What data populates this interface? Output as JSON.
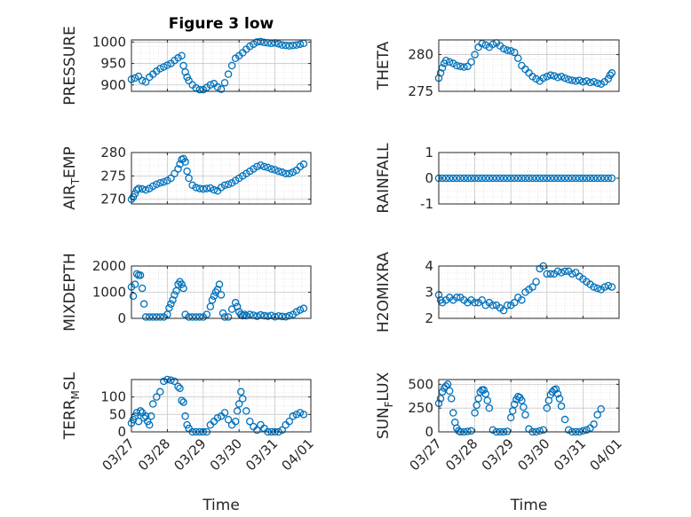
{
  "figure_title": "Figure 3 low",
  "marker_color": "#0072bd",
  "chart_data": [
    {
      "type": "scatter",
      "name": "pressure",
      "ylabel": "PRESSURE",
      "ylim": [
        885,
        1005
      ],
      "yticks": [
        900,
        950,
        1000
      ],
      "ytick_labels": [
        "900",
        "950",
        "1000"
      ],
      "xlim": [
        0,
        5
      ],
      "x": [
        0.0,
        0.1,
        0.2,
        0.3,
        0.4,
        0.5,
        0.6,
        0.7,
        0.8,
        0.9,
        1.0,
        1.1,
        1.2,
        1.3,
        1.4,
        1.45,
        1.5,
        1.55,
        1.6,
        1.7,
        1.8,
        1.9,
        2.0,
        2.1,
        2.2,
        2.3,
        2.4,
        2.5,
        2.6,
        2.7,
        2.8,
        2.9,
        3.0,
        3.1,
        3.2,
        3.3,
        3.4,
        3.5,
        3.6,
        3.7,
        3.8,
        3.9,
        4.0,
        4.1,
        4.2,
        4.3,
        4.4,
        4.5,
        4.6,
        4.7,
        4.8
      ],
      "y": [
        913,
        916,
        920,
        910,
        907,
        918,
        925,
        932,
        938,
        942,
        946,
        950,
        957,
        963,
        968,
        945,
        930,
        918,
        910,
        900,
        893,
        889,
        889,
        894,
        900,
        903,
        895,
        890,
        905,
        925,
        945,
        962,
        968,
        975,
        983,
        990,
        995,
        1000,
        1001,
        999,
        998,
        997,
        998,
        996,
        993,
        992,
        991,
        992,
        993,
        995,
        997
      ]
    },
    {
      "type": "scatter",
      "name": "theta",
      "ylabel": "THETA",
      "ylim": [
        275,
        282
      ],
      "yticks": [
        275,
        280
      ],
      "ytick_labels": [
        "275",
        "280"
      ],
      "xlim": [
        0,
        5
      ],
      "x": [
        0.0,
        0.05,
        0.1,
        0.15,
        0.2,
        0.3,
        0.4,
        0.5,
        0.6,
        0.7,
        0.8,
        0.9,
        1.0,
        1.1,
        1.2,
        1.3,
        1.4,
        1.5,
        1.6,
        1.7,
        1.8,
        1.9,
        2.0,
        2.1,
        2.2,
        2.3,
        2.4,
        2.5,
        2.6,
        2.7,
        2.8,
        2.9,
        3.0,
        3.1,
        3.2,
        3.3,
        3.4,
        3.5,
        3.6,
        3.7,
        3.8,
        3.9,
        4.0,
        4.1,
        4.2,
        4.3,
        4.4,
        4.5,
        4.6,
        4.7,
        4.75,
        4.8
      ],
      "y": [
        276.8,
        277.5,
        278.2,
        278.8,
        279.2,
        279.0,
        278.8,
        278.5,
        278.4,
        278.3,
        278.4,
        279.0,
        280.0,
        281.0,
        281.5,
        281.3,
        281.0,
        281.4,
        281.6,
        281.2,
        280.8,
        280.6,
        280.5,
        280.3,
        279.5,
        278.5,
        278.0,
        277.5,
        277.0,
        276.7,
        276.4,
        276.8,
        277.0,
        277.2,
        277.1,
        276.9,
        277.0,
        276.8,
        276.6,
        276.5,
        276.4,
        276.5,
        276.3,
        276.4,
        276.2,
        276.3,
        276.1,
        276.0,
        276.3,
        276.7,
        277.2,
        277.5
      ]
    },
    {
      "type": "scatter",
      "name": "air_temp",
      "ylabel": "AIR_TEMP",
      "ylim": [
        269,
        280
      ],
      "yticks": [
        270,
        275,
        280
      ],
      "ytick_labels": [
        "270",
        "275",
        "280"
      ],
      "xlim": [
        0,
        5
      ],
      "x": [
        0.0,
        0.05,
        0.1,
        0.15,
        0.2,
        0.3,
        0.4,
        0.5,
        0.6,
        0.7,
        0.8,
        0.9,
        1.0,
        1.1,
        1.2,
        1.3,
        1.35,
        1.4,
        1.45,
        1.5,
        1.55,
        1.6,
        1.7,
        1.8,
        1.9,
        2.0,
        2.1,
        2.2,
        2.3,
        2.4,
        2.5,
        2.6,
        2.7,
        2.8,
        2.9,
        3.0,
        3.1,
        3.2,
        3.3,
        3.4,
        3.5,
        3.6,
        3.7,
        3.8,
        3.9,
        4.0,
        4.1,
        4.2,
        4.3,
        4.4,
        4.5,
        4.6,
        4.7,
        4.8
      ],
      "y": [
        270.0,
        270.5,
        271.2,
        272.0,
        272.3,
        272.2,
        272.0,
        272.3,
        272.8,
        273.2,
        273.5,
        273.7,
        274.0,
        274.5,
        275.5,
        276.5,
        277.5,
        278.5,
        278.7,
        278.0,
        276.0,
        274.5,
        273.0,
        272.5,
        272.3,
        272.2,
        272.3,
        272.4,
        272.0,
        271.8,
        272.5,
        273.0,
        273.2,
        273.5,
        274.0,
        274.5,
        275.0,
        275.5,
        276.0,
        276.5,
        277.0,
        277.3,
        277.0,
        276.8,
        276.5,
        276.3,
        276.0,
        275.8,
        275.5,
        275.5,
        275.8,
        276.2,
        277.0,
        277.5
      ]
    },
    {
      "type": "scatter",
      "name": "rainfall",
      "ylabel": "RAINFALL",
      "ylim": [
        -1,
        1
      ],
      "yticks": [
        -1,
        0,
        1
      ],
      "ytick_labels": [
        "-1",
        "0",
        "1"
      ],
      "xlim": [
        0,
        5
      ],
      "x": [
        0.0,
        0.1,
        0.2,
        0.3,
        0.4,
        0.5,
        0.6,
        0.7,
        0.8,
        0.9,
        1.0,
        1.1,
        1.2,
        1.3,
        1.4,
        1.5,
        1.6,
        1.7,
        1.8,
        1.9,
        2.0,
        2.1,
        2.2,
        2.3,
        2.4,
        2.5,
        2.6,
        2.7,
        2.8,
        2.9,
        3.0,
        3.1,
        3.2,
        3.3,
        3.4,
        3.5,
        3.6,
        3.7,
        3.8,
        3.9,
        4.0,
        4.1,
        4.2,
        4.3,
        4.4,
        4.5,
        4.6,
        4.7,
        4.8
      ],
      "y": [
        0,
        0,
        0,
        0,
        0,
        0,
        0,
        0,
        0,
        0,
        0,
        0,
        0,
        0,
        0,
        0,
        0,
        0,
        0,
        0,
        0,
        0,
        0,
        0,
        0,
        0,
        0,
        0,
        0,
        0,
        0,
        0,
        0,
        0,
        0,
        0,
        0,
        0,
        0,
        0,
        0,
        0,
        0,
        0,
        0,
        0,
        0,
        0,
        0
      ]
    },
    {
      "type": "scatter",
      "name": "mixdepth",
      "ylabel": "MIXDEPTH",
      "ylim": [
        0,
        2000
      ],
      "yticks": [
        0,
        1000,
        2000
      ],
      "ytick_labels": [
        "0",
        "1000",
        "2000"
      ],
      "xlim": [
        0,
        5
      ],
      "x": [
        0.0,
        0.05,
        0.1,
        0.15,
        0.2,
        0.25,
        0.3,
        0.35,
        0.4,
        0.5,
        0.6,
        0.7,
        0.8,
        0.9,
        1.0,
        1.05,
        1.1,
        1.15,
        1.2,
        1.25,
        1.3,
        1.35,
        1.4,
        1.45,
        1.5,
        1.6,
        1.7,
        1.8,
        1.9,
        2.0,
        2.1,
        2.2,
        2.25,
        2.3,
        2.35,
        2.4,
        2.45,
        2.5,
        2.55,
        2.6,
        2.7,
        2.8,
        2.9,
        2.95,
        3.0,
        3.05,
        3.1,
        3.15,
        3.2,
        3.3,
        3.4,
        3.5,
        3.6,
        3.7,
        3.8,
        3.9,
        4.0,
        4.1,
        4.2,
        4.3,
        4.4,
        4.5,
        4.6,
        4.7,
        4.8
      ],
      "y": [
        1200,
        850,
        1300,
        1700,
        1650,
        1650,
        1150,
        550,
        50,
        50,
        50,
        50,
        50,
        50,
        150,
        400,
        550,
        700,
        900,
        1050,
        1300,
        1400,
        1300,
        1150,
        150,
        50,
        50,
        50,
        50,
        50,
        150,
        450,
        700,
        850,
        1000,
        1100,
        1300,
        900,
        200,
        50,
        50,
        350,
        600,
        450,
        250,
        150,
        100,
        150,
        100,
        150,
        120,
        80,
        130,
        100,
        80,
        110,
        60,
        90,
        70,
        60,
        100,
        150,
        250,
        320,
        380
      ]
    },
    {
      "type": "scatter",
      "name": "h2omixra",
      "ylabel": "H2OMIXRA",
      "ylim": [
        2,
        4
      ],
      "yticks": [
        2,
        3,
        4
      ],
      "ytick_labels": [
        "2",
        "3",
        "4"
      ],
      "xlim": [
        0,
        5
      ],
      "x": [
        0.0,
        0.05,
        0.1,
        0.2,
        0.3,
        0.4,
        0.5,
        0.6,
        0.7,
        0.8,
        0.9,
        1.0,
        1.1,
        1.2,
        1.3,
        1.4,
        1.5,
        1.6,
        1.7,
        1.8,
        1.9,
        2.0,
        2.1,
        2.2,
        2.3,
        2.4,
        2.5,
        2.6,
        2.7,
        2.8,
        2.9,
        3.0,
        3.1,
        3.2,
        3.3,
        3.4,
        3.5,
        3.6,
        3.7,
        3.8,
        3.9,
        4.0,
        4.1,
        4.2,
        4.3,
        4.4,
        4.5,
        4.6,
        4.7,
        4.8
      ],
      "y": [
        2.9,
        2.7,
        2.6,
        2.7,
        2.8,
        2.7,
        2.8,
        2.8,
        2.7,
        2.6,
        2.7,
        2.6,
        2.6,
        2.7,
        2.5,
        2.6,
        2.5,
        2.5,
        2.4,
        2.3,
        2.5,
        2.5,
        2.6,
        2.8,
        2.7,
        3.0,
        3.1,
        3.2,
        3.4,
        3.9,
        4.0,
        3.7,
        3.7,
        3.7,
        3.8,
        3.75,
        3.8,
        3.8,
        3.7,
        3.75,
        3.6,
        3.5,
        3.4,
        3.3,
        3.2,
        3.15,
        3.1,
        3.2,
        3.25,
        3.2
      ]
    },
    {
      "type": "scatter",
      "name": "terr_msl",
      "ylabel": "TERR_MSL",
      "ylim": [
        0,
        150
      ],
      "yticks": [
        0,
        50,
        100
      ],
      "ytick_labels": [
        "0",
        "50",
        "100"
      ],
      "xlim": [
        0,
        5
      ],
      "x": [
        0.0,
        0.05,
        0.1,
        0.15,
        0.2,
        0.25,
        0.3,
        0.35,
        0.4,
        0.45,
        0.5,
        0.55,
        0.6,
        0.7,
        0.8,
        0.9,
        1.0,
        1.1,
        1.2,
        1.3,
        1.35,
        1.4,
        1.45,
        1.5,
        1.55,
        1.6,
        1.7,
        1.8,
        1.9,
        2.0,
        2.1,
        2.2,
        2.3,
        2.4,
        2.5,
        2.6,
        2.7,
        2.8,
        2.9,
        2.95,
        3.0,
        3.05,
        3.1,
        3.2,
        3.3,
        3.4,
        3.5,
        3.6,
        3.7,
        3.8,
        3.9,
        4.0,
        4.1,
        4.2,
        4.3,
        4.4,
        4.5,
        4.6,
        4.7,
        4.8
      ],
      "y": [
        25,
        35,
        45,
        55,
        30,
        60,
        55,
        40,
        45,
        30,
        20,
        45,
        80,
        100,
        115,
        145,
        150,
        148,
        145,
        130,
        125,
        90,
        85,
        45,
        20,
        10,
        0,
        0,
        0,
        0,
        0,
        20,
        30,
        40,
        45,
        55,
        35,
        20,
        30,
        60,
        80,
        115,
        95,
        60,
        30,
        15,
        5,
        20,
        10,
        0,
        0,
        0,
        0,
        5,
        20,
        30,
        45,
        50,
        55,
        50
      ]
    },
    {
      "type": "scatter",
      "name": "sun_flux",
      "ylabel": "SUN_FLUX",
      "ylim": [
        0,
        550
      ],
      "yticks": [
        0,
        250,
        500
      ],
      "ytick_labels": [
        "0",
        "250",
        "500"
      ],
      "xlim": [
        0,
        5
      ],
      "x": [
        0.0,
        0.05,
        0.1,
        0.15,
        0.2,
        0.25,
        0.3,
        0.35,
        0.4,
        0.45,
        0.5,
        0.55,
        0.6,
        0.7,
        0.8,
        0.9,
        1.0,
        1.05,
        1.1,
        1.15,
        1.2,
        1.25,
        1.3,
        1.35,
        1.4,
        1.5,
        1.6,
        1.7,
        1.8,
        1.9,
        2.0,
        2.05,
        2.1,
        2.15,
        2.2,
        2.25,
        2.3,
        2.35,
        2.4,
        2.5,
        2.6,
        2.7,
        2.8,
        2.9,
        3.0,
        3.05,
        3.1,
        3.15,
        3.2,
        3.25,
        3.3,
        3.35,
        3.4,
        3.5,
        3.6,
        3.7,
        3.8,
        3.9,
        4.0,
        4.1,
        4.2,
        4.3,
        4.4,
        4.5
      ],
      "y": [
        300,
        350,
        420,
        460,
        480,
        500,
        430,
        350,
        200,
        100,
        40,
        10,
        0,
        0,
        5,
        10,
        200,
        280,
        350,
        420,
        440,
        440,
        400,
        330,
        250,
        20,
        0,
        0,
        0,
        5,
        150,
        220,
        290,
        340,
        370,
        360,
        330,
        260,
        180,
        30,
        0,
        0,
        10,
        20,
        250,
        330,
        390,
        420,
        440,
        450,
        400,
        350,
        270,
        130,
        20,
        0,
        0,
        0,
        10,
        20,
        40,
        80,
        180,
        240
      ]
    }
  ],
  "x_tick_labels": [
    "03/27",
    "03/28",
    "03/29",
    "03/30",
    "03/31",
    "04/01"
  ],
  "xlabel": "Time"
}
